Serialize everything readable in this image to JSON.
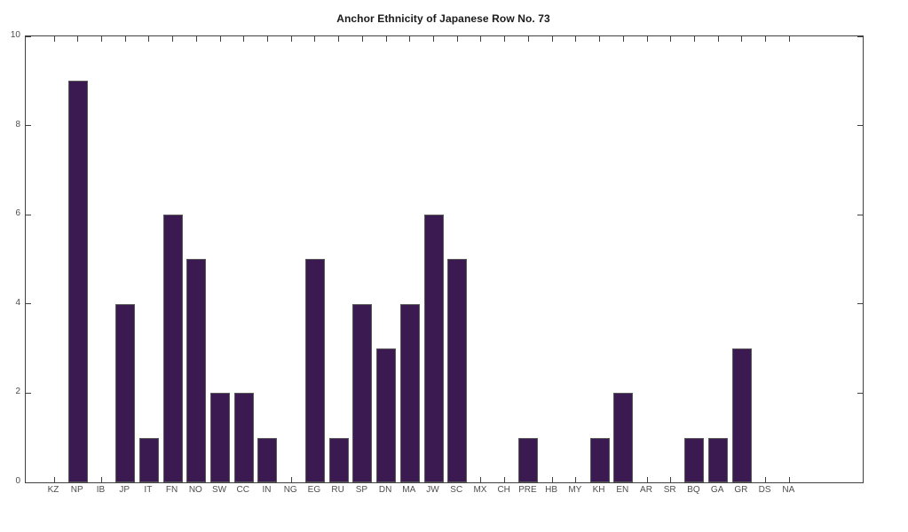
{
  "figure": {
    "background": "#ffffff"
  },
  "chart_data": {
    "type": "bar",
    "title": "Anchor Ethnicity of Japanese Row No. 73",
    "categories": [
      "KZ",
      "NP",
      "IB",
      "JP",
      "IT",
      "FN",
      "NO",
      "SW",
      "CC",
      "IN",
      "NG",
      "EG",
      "RU",
      "SP",
      "DN",
      "MA",
      "JW",
      "SC",
      "MX",
      "CH",
      "PRE",
      "HB",
      "MY",
      "KH",
      "EN",
      "AR",
      "SR",
      "BQ",
      "GA",
      "GR",
      "DS",
      "NA"
    ],
    "values": [
      0,
      9,
      0,
      4,
      1,
      6,
      5,
      2,
      2,
      1,
      0,
      5,
      1,
      4,
      3,
      4,
      6,
      5,
      0,
      0,
      1,
      0,
      0,
      1,
      2,
      0,
      0,
      1,
      1,
      3,
      0,
      0
    ],
    "xlabel": "",
    "ylabel": "",
    "ylim": [
      0,
      10
    ],
    "yticks": [
      0,
      2,
      4,
      6,
      8,
      10
    ],
    "grid": false,
    "legend": null,
    "bar_color": "#3b1a52",
    "bar_edge_color": "#5a5a5a",
    "axis_color": "#404040",
    "tick_label_color": "#4d4d4d"
  }
}
